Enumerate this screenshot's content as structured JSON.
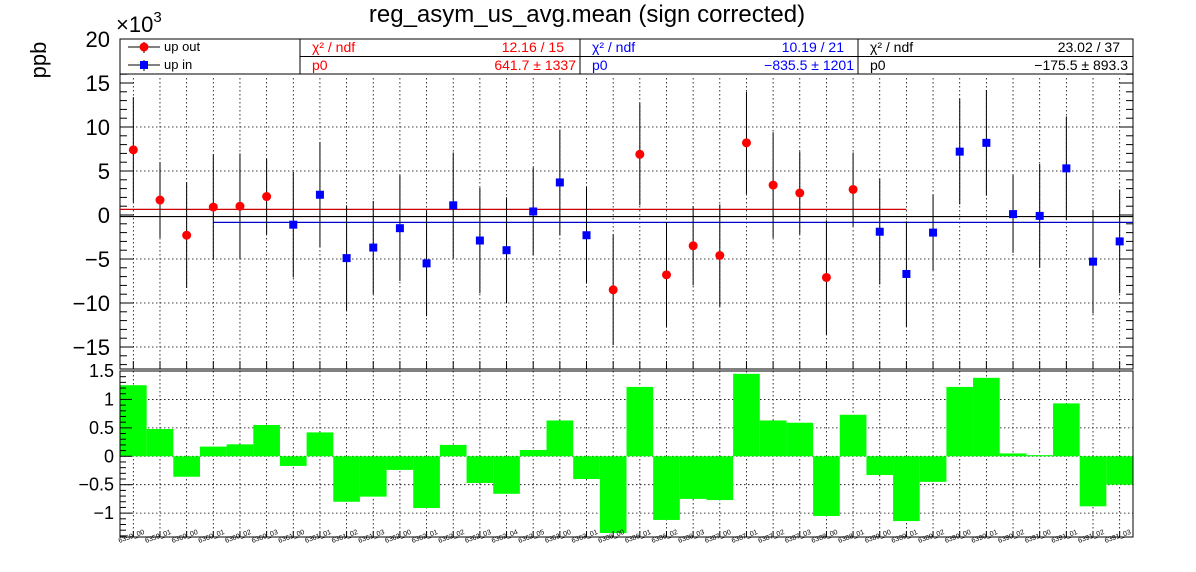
{
  "chart_data": [
    {
      "type": "scatter",
      "title": "reg_asym_us_avg.mean (sign corrected)",
      "ylabel": "ppb",
      "multiplier_label": "×10",
      "multiplier_exp": "3",
      "ylim": [
        -17.5,
        20
      ],
      "yticks": [
        -15,
        -10,
        -5,
        0,
        5,
        10,
        15,
        20
      ],
      "ytick_labels": [
        "−15",
        "−10",
        "−5",
        "0",
        "5",
        "10",
        "15",
        "20"
      ],
      "grid": true,
      "categories": [
        "6359_00",
        "6359_01",
        "6360_00",
        "6360_01",
        "6360_02",
        "6360_03",
        "6361_00",
        "6361_01",
        "6361_02",
        "6361_03",
        "6362_00",
        "6362_01",
        "6362_02",
        "6362_03",
        "6362_04",
        "6362_05",
        "6363_00",
        "6363_01",
        "6386_00",
        "6386_01",
        "6386_02",
        "6386_03",
        "6387_00",
        "6387_01",
        "6387_02",
        "6387_03",
        "6388_00",
        "6388_01",
        "6389_00",
        "6389_01",
        "6389_02",
        "6390_00",
        "6390_01",
        "6390_02",
        "6391_00",
        "6391_01",
        "6391_02",
        "6391_03"
      ],
      "series": [
        {
          "name": "up out",
          "color": "#ff0000",
          "marker": "circle",
          "x_index": [
            0,
            1,
            2,
            3,
            4,
            5,
            18,
            19,
            20,
            21,
            22,
            23,
            24,
            25,
            26,
            27
          ],
          "values": [
            7.4,
            1.7,
            -2.3,
            0.9,
            1.0,
            2.1,
            -8.5,
            6.9,
            -6.8,
            -3.5,
            -4.6,
            8.2,
            3.4,
            2.5,
            -7.1,
            2.9
          ],
          "errors": [
            6.0,
            4.3,
            6.0,
            6.0,
            6.0,
            4.3,
            6.3,
            5.8,
            6.0,
            4.5,
            5.8,
            5.8,
            6.0,
            4.7,
            6.5,
            4.2
          ]
        },
        {
          "name": "up in",
          "color": "#0000ff",
          "marker": "square",
          "x_index": [
            6,
            7,
            8,
            9,
            10,
            11,
            12,
            13,
            14,
            15,
            16,
            17,
            28,
            29,
            30,
            31,
            32,
            33,
            34,
            35,
            36,
            37
          ],
          "values": [
            -1.1,
            2.3,
            -4.9,
            -3.7,
            -1.5,
            -5.5,
            1.1,
            -2.9,
            -4.0,
            0.4,
            3.7,
            -2.3,
            -1.9,
            -6.7,
            -2.0,
            7.2,
            8.2,
            0.1,
            -0.1,
            5.3,
            -5.3,
            -3.0
          ],
          "errors": [
            6.0,
            6.0,
            6.0,
            5.3,
            6.0,
            6.0,
            6.0,
            6.0,
            6.0,
            5.0,
            6.0,
            5.5,
            6.0,
            6.0,
            4.3,
            6.0,
            6.0,
            4.4,
            5.9,
            5.9,
            5.9,
            5.9
          ]
        }
      ],
      "fit_lines": [
        {
          "color": "#cc0000",
          "value": 0.6417,
          "x_index_range": [
            0,
            29
          ]
        },
        {
          "color": "#0000cc",
          "value": -0.8355,
          "x_index_range": [
            3,
            37
          ]
        },
        {
          "color": "#000000",
          "value": -0.1755,
          "x_index_range": [
            0,
            37
          ]
        }
      ],
      "legend": {
        "placement": "top",
        "entries": [
          {
            "label": "up out",
            "color": "#ff0000",
            "marker": "circle"
          },
          {
            "label": "up in",
            "color": "#0000ff",
            "marker": "square"
          }
        ]
      },
      "stat_boxes": [
        {
          "color": "#ff0000",
          "chi_label": "χ² / ndf",
          "chi_value": "12.16 / 15",
          "p0_label": "p0",
          "p0_value": "641.7 ±  1337"
        },
        {
          "color": "#0000ff",
          "chi_label": "χ² / ndf",
          "chi_value": "10.19 / 21",
          "p0_label": "p0",
          "p0_value": "−835.5 ±  1201"
        },
        {
          "color": "#000000",
          "chi_label": "χ² / ndf",
          "chi_value": "23.02 / 37",
          "p0_label": "p0",
          "p0_value": "−175.5 ± 893.3"
        }
      ]
    },
    {
      "type": "bar",
      "color": "#00ff00",
      "ylim": [
        -1.42,
        1.5
      ],
      "yticks": [
        -1,
        -0.5,
        0,
        0.5,
        1,
        1.5
      ],
      "ytick_labels": [
        "−1",
        "−0.5",
        "0",
        "0.5",
        "1",
        "1.5"
      ],
      "grid": true,
      "values": [
        1.25,
        0.48,
        -0.36,
        0.17,
        0.21,
        0.55,
        -0.17,
        0.42,
        -0.8,
        -0.71,
        -0.24,
        -0.91,
        0.2,
        -0.47,
        -0.66,
        0.11,
        0.63,
        -0.4,
        -1.35,
        1.22,
        -1.12,
        -0.75,
        -0.77,
        1.45,
        0.63,
        0.59,
        -1.05,
        0.73,
        -0.33,
        -1.14,
        -0.45,
        1.22,
        1.38,
        0.05,
        0.02,
        0.93,
        -0.88,
        -0.5
      ]
    }
  ]
}
